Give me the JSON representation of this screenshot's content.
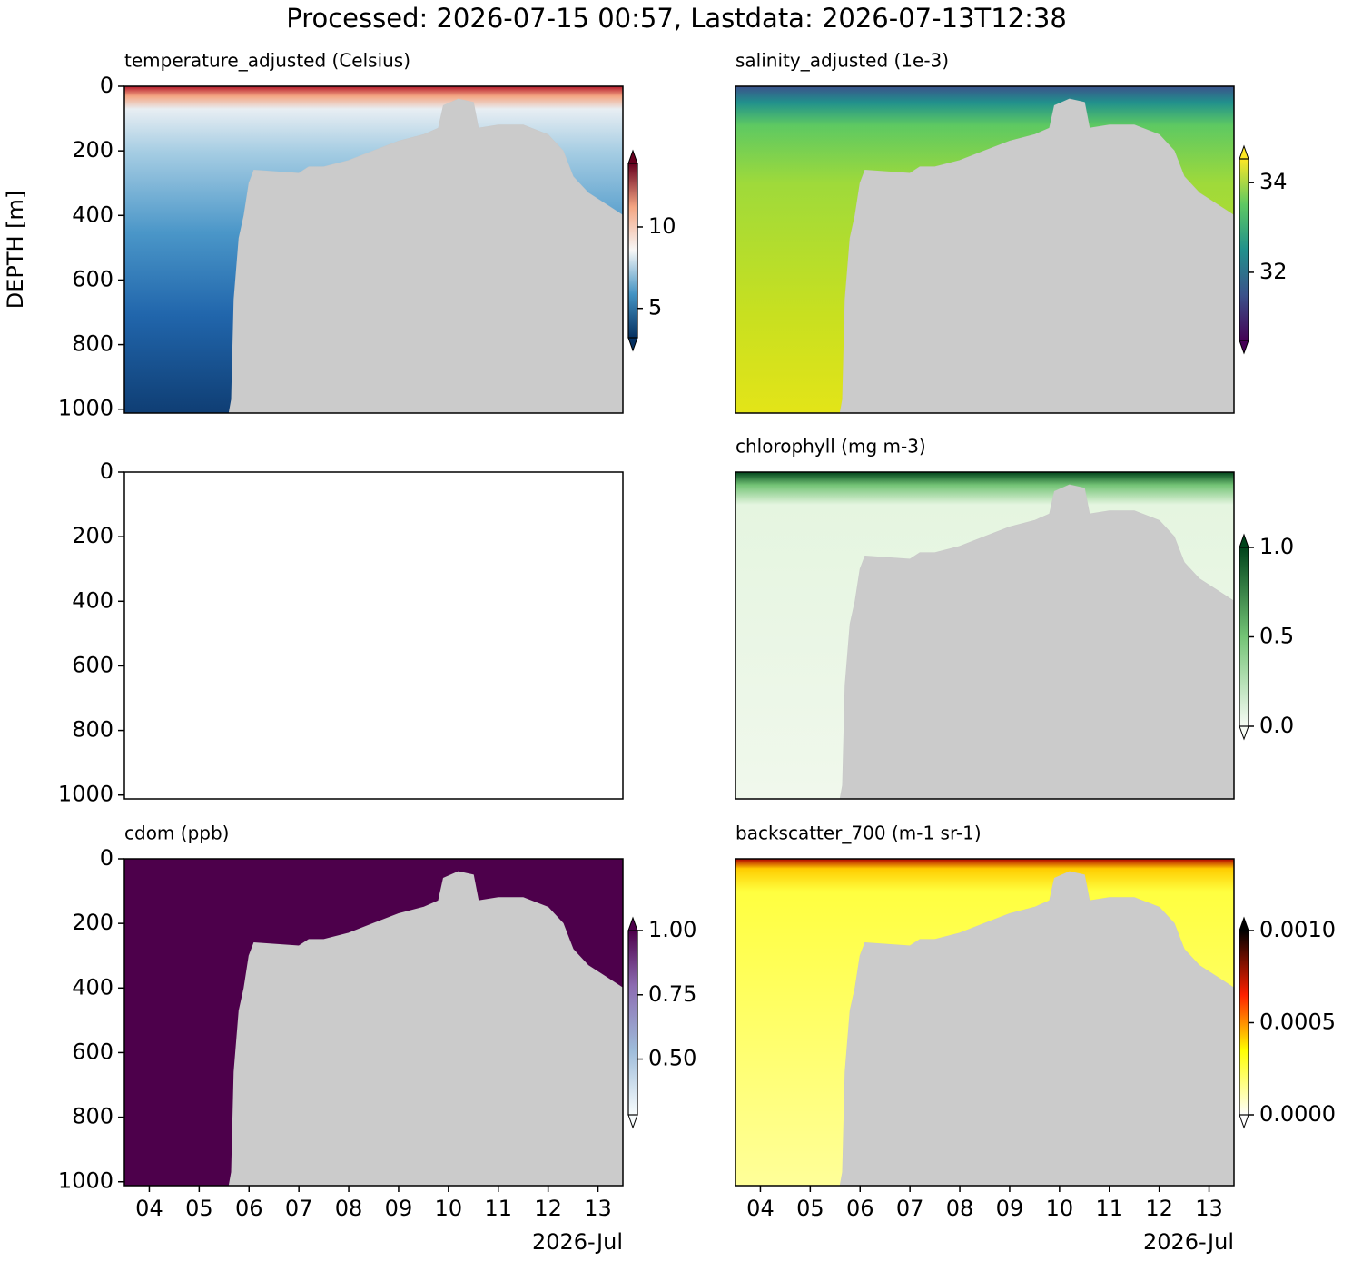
{
  "title": "Processed: 2026-07-15 00:57, Lastdata: 2026-07-13T12:38",
  "chart_data": [
    {
      "type": "section",
      "title": "temperature_adjusted (Celsius)",
      "ylabel": "DEPTH [m]",
      "xlim": [
        3.5,
        13.5
      ],
      "ylim": [
        1012,
        0
      ],
      "yticks": [
        0,
        200,
        400,
        600,
        800,
        1000
      ],
      "x": [
        3.5,
        5.6,
        5.65,
        5.7,
        5.8,
        5.9,
        6.0,
        6.1,
        7.0,
        7.2,
        7.5,
        8.0,
        8.5,
        9.0,
        9.5,
        9.8,
        9.9,
        10.2,
        10.5,
        10.6,
        11.0,
        11.5,
        12.0,
        12.3,
        12.5,
        12.8,
        13.2,
        13.5
      ],
      "values": [
        1012,
        1012,
        970,
        660,
        470,
        400,
        300,
        260,
        270,
        250,
        250,
        230,
        200,
        170,
        150,
        130,
        60,
        40,
        50,
        130,
        120,
        120,
        150,
        200,
        280,
        330,
        370,
        400
      ],
      "colorbar": {
        "lim": [
          3.2,
          13.9
        ],
        "ticks": [
          5,
          10
        ],
        "extend": "both"
      }
    },
    {
      "type": "section",
      "title": "salinity_adjusted (1e-3)",
      "xlim": [
        3.5,
        13.5
      ],
      "ylim": [
        1012,
        0
      ],
      "x": [
        3.5,
        5.6,
        5.65,
        5.7,
        5.8,
        5.9,
        6.0,
        6.1,
        7.0,
        7.2,
        7.5,
        8.0,
        8.5,
        9.0,
        9.5,
        9.8,
        9.9,
        10.2,
        10.5,
        10.6,
        11.0,
        11.5,
        12.0,
        12.3,
        12.5,
        12.8,
        13.2,
        13.5
      ],
      "values": [
        1012,
        1012,
        970,
        660,
        470,
        400,
        300,
        260,
        270,
        250,
        250,
        230,
        200,
        170,
        150,
        130,
        60,
        40,
        50,
        130,
        120,
        120,
        150,
        200,
        280,
        330,
        370,
        400
      ],
      "colorbar": {
        "lim": [
          30.48,
          34.53
        ],
        "ticks": [
          32,
          34
        ],
        "extend": "both"
      }
    },
    {
      "type": "section",
      "xlim": [
        3.5,
        13.5
      ],
      "ylim": [
        1012,
        0
      ],
      "yticks": [
        0,
        200,
        400,
        600,
        800,
        1000
      ]
    },
    {
      "type": "section",
      "title": "chlorophyll (mg m-3)",
      "xlim": [
        3.5,
        13.5
      ],
      "ylim": [
        1012,
        0
      ],
      "x": [
        3.5,
        5.6,
        5.65,
        5.7,
        5.8,
        5.9,
        6.0,
        6.1,
        7.0,
        7.2,
        7.5,
        8.0,
        8.5,
        9.0,
        9.5,
        9.8,
        9.9,
        10.2,
        10.5,
        10.6,
        11.0,
        11.5,
        12.0,
        12.3,
        12.5,
        12.8,
        13.2,
        13.5
      ],
      "values": [
        1012,
        1012,
        970,
        660,
        470,
        400,
        300,
        260,
        270,
        250,
        250,
        230,
        200,
        170,
        150,
        130,
        60,
        40,
        50,
        130,
        120,
        120,
        150,
        200,
        280,
        330,
        370,
        400
      ],
      "colorbar": {
        "lim": [
          0,
          1
        ],
        "ticks": [
          {
            "value": 0,
            "label": "0.0"
          },
          {
            "value": 0.5,
            "label": "0.5"
          },
          {
            "value": 1,
            "label": "1.0"
          }
        ],
        "extend": "both"
      }
    },
    {
      "type": "section",
      "title": "cdom (ppb)",
      "xlabel": "2026-Jul",
      "xlim": [
        3.5,
        13.5
      ],
      "ylim": [
        1012,
        0
      ],
      "yticks": [
        0,
        200,
        400,
        600,
        800,
        1000
      ],
      "xticks": [
        {
          "value": 4,
          "label": "04"
        },
        {
          "value": 5,
          "label": "05"
        },
        {
          "value": 6,
          "label": "06"
        },
        {
          "value": 7,
          "label": "07"
        },
        {
          "value": 8,
          "label": "08"
        },
        {
          "value": 9,
          "label": "09"
        },
        {
          "value": 10,
          "label": "10"
        },
        {
          "value": 11,
          "label": "11"
        },
        {
          "value": 12,
          "label": "12"
        },
        {
          "value": 13,
          "label": "13"
        }
      ],
      "x": [
        3.5,
        5.6,
        5.65,
        5.7,
        5.8,
        5.9,
        6.0,
        6.1,
        7.0,
        7.2,
        7.5,
        8.0,
        8.5,
        9.0,
        9.5,
        9.8,
        9.9,
        10.2,
        10.5,
        10.6,
        11.0,
        11.5,
        12.0,
        12.3,
        12.5,
        12.8,
        13.2,
        13.5
      ],
      "values": [
        1012,
        1012,
        970,
        660,
        470,
        400,
        300,
        260,
        270,
        250,
        250,
        230,
        200,
        170,
        150,
        130,
        60,
        40,
        50,
        130,
        120,
        120,
        150,
        200,
        280,
        330,
        370,
        400
      ],
      "colorbar": {
        "lim": [
          0.283,
          1.0
        ],
        "ticks": [
          {
            "value": 0.5,
            "label": "0.50"
          },
          {
            "value": 0.75,
            "label": "0.75"
          },
          {
            "value": 1.0,
            "label": "1.00"
          }
        ],
        "extend": "both"
      }
    },
    {
      "type": "section",
      "title": "backscatter_700 (m-1 sr-1)",
      "xlabel": "2026-Jul",
      "xlim": [
        3.5,
        13.5
      ],
      "ylim": [
        1012,
        0
      ],
      "xticks": [
        {
          "value": 4,
          "label": "04"
        },
        {
          "value": 5,
          "label": "05"
        },
        {
          "value": 6,
          "label": "06"
        },
        {
          "value": 7,
          "label": "07"
        },
        {
          "value": 8,
          "label": "08"
        },
        {
          "value": 9,
          "label": "09"
        },
        {
          "value": 10,
          "label": "10"
        },
        {
          "value": 11,
          "label": "11"
        },
        {
          "value": 12,
          "label": "12"
        },
        {
          "value": 13,
          "label": "13"
        }
      ],
      "x": [
        3.5,
        5.6,
        5.65,
        5.7,
        5.8,
        5.9,
        6.0,
        6.1,
        7.0,
        7.2,
        7.5,
        8.0,
        8.5,
        9.0,
        9.5,
        9.8,
        9.9,
        10.2,
        10.5,
        10.6,
        11.0,
        11.5,
        12.0,
        12.3,
        12.5,
        12.8,
        13.2,
        13.5
      ],
      "values": [
        1012,
        1012,
        970,
        660,
        470,
        400,
        300,
        260,
        270,
        250,
        250,
        230,
        200,
        170,
        150,
        130,
        60,
        40,
        50,
        130,
        120,
        120,
        150,
        200,
        280,
        330,
        370,
        400
      ],
      "colorbar": {
        "lim": [
          0,
          0.001
        ],
        "ticks": [
          {
            "value": 0,
            "label": "0.0000"
          },
          {
            "value": 0.0005,
            "label": "0.0005"
          },
          {
            "value": 0.001,
            "label": "0.0010"
          }
        ],
        "extend": "both"
      }
    }
  ]
}
